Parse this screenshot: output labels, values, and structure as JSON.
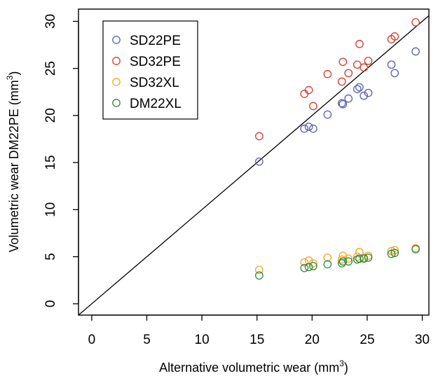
{
  "chart_data": {
    "type": "scatter",
    "title": "",
    "xlabel": {
      "main": "Alternative volumetric wear (mm",
      "sup": "3",
      "close": ")"
    },
    "ylabel": {
      "main": "Volumetric wear DM22PE (mm",
      "sup": "3",
      "close": ")"
    },
    "xlim": [
      -1.2,
      30.6
    ],
    "ylim": [
      -1.2,
      31.3
    ],
    "xticks": [
      0,
      5,
      10,
      15,
      20,
      25,
      30
    ],
    "xtick_labels": [
      "0",
      "5",
      "10",
      "15",
      "20",
      "25",
      "30"
    ],
    "yticks": [
      0,
      5,
      10,
      15,
      20,
      25,
      30
    ],
    "ytick_labels": [
      "0",
      "5",
      "10",
      "15",
      "20",
      "25",
      "30"
    ],
    "grid": false,
    "legend_position": "top-left",
    "reference_line": "y = x",
    "x": [
      15.2,
      19.3,
      19.7,
      20.1,
      21.4,
      22.7,
      22.8,
      23.3,
      24.1,
      24.3,
      24.7,
      25.1,
      27.2,
      27.5,
      29.4
    ],
    "series": [
      {
        "name": "SD22PE",
        "color": "#5b5fb0",
        "values": [
          15.1,
          18.6,
          18.8,
          18.6,
          20.1,
          21.3,
          21.2,
          21.8,
          22.8,
          23.0,
          22.1,
          22.4,
          25.4,
          24.5,
          26.8
        ]
      },
      {
        "name": "SD32PE",
        "color": "#d93a2b",
        "values": [
          17.8,
          22.3,
          22.7,
          21.0,
          24.4,
          23.6,
          25.7,
          24.5,
          25.4,
          27.6,
          25.1,
          25.8,
          28.1,
          28.4,
          29.9
        ]
      },
      {
        "name": "SD32XL",
        "color": "#f2a81d",
        "values": [
          3.6,
          4.4,
          4.6,
          4.3,
          4.9,
          4.7,
          5.1,
          4.8,
          5.0,
          5.5,
          4.9,
          5.1,
          5.6,
          5.7,
          5.9
        ]
      },
      {
        "name": "DM22XL",
        "color": "#2e8a3e",
        "values": [
          3.0,
          3.8,
          3.9,
          4.0,
          4.2,
          4.3,
          4.5,
          4.5,
          4.7,
          4.8,
          4.8,
          4.9,
          5.3,
          5.4,
          5.8
        ]
      }
    ]
  }
}
